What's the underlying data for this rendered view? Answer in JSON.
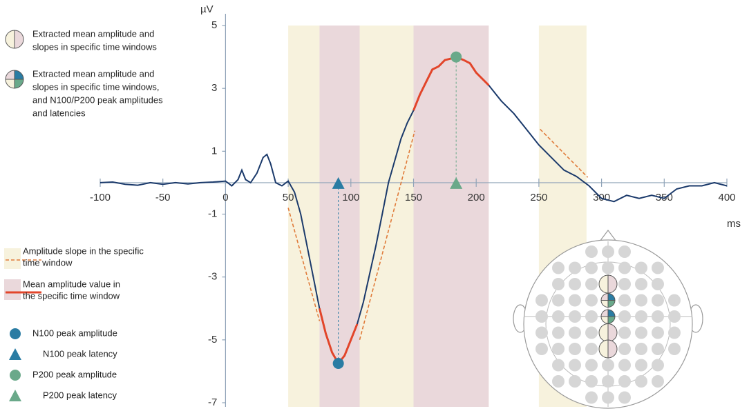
{
  "chart_data": {
    "type": "line",
    "xlabel": "ms",
    "ylabel": "µV",
    "x": [
      -100,
      -90,
      -80,
      -70,
      -60,
      -50,
      -40,
      -30,
      -20,
      -10,
      0,
      5,
      10,
      13,
      16,
      20,
      25,
      30,
      33,
      36,
      40,
      45,
      50,
      55,
      60,
      65,
      70,
      75,
      80,
      85,
      90,
      95,
      100,
      105,
      110,
      115,
      120,
      125,
      130,
      135,
      140,
      145,
      150,
      155,
      160,
      165,
      170,
      175,
      180,
      184,
      190,
      195,
      200,
      210,
      220,
      230,
      240,
      250,
      260,
      270,
      280,
      290,
      300,
      310,
      320,
      330,
      340,
      350,
      360,
      370,
      380,
      390,
      400
    ],
    "values": [
      0,
      0.02,
      -0.05,
      -0.08,
      0,
      -0.05,
      0,
      -0.04,
      0,
      0.02,
      0.05,
      -0.1,
      0.1,
      0.4,
      0.1,
      0,
      0.3,
      0.8,
      0.9,
      0.6,
      0,
      -0.1,
      0.05,
      -0.3,
      -1,
      -2,
      -3,
      -4,
      -4.8,
      -5.4,
      -5.75,
      -5.5,
      -5,
      -4.5,
      -3.8,
      -2.9,
      -2,
      -1,
      0,
      0.7,
      1.4,
      1.9,
      2.3,
      2.8,
      3.2,
      3.6,
      3.7,
      3.9,
      3.95,
      4,
      3.9,
      3.8,
      3.5,
      3.1,
      2.6,
      2.2,
      1.7,
      1.2,
      0.8,
      0.4,
      0.2,
      -0.1,
      -0.5,
      -0.6,
      -0.4,
      -0.5,
      -0.4,
      -0.5,
      -0.2,
      -0.1,
      -0.1,
      0,
      -0.1
    ],
    "color": "#1b3a6b",
    "highlight_color": "#e2452a",
    "slope_color": "#e07b3a",
    "xlim": [
      -100,
      400
    ],
    "xticks": [
      -100,
      -50,
      0,
      50,
      100,
      150,
      200,
      250,
      300,
      350,
      400
    ],
    "ylim": [
      -7,
      5
    ],
    "yticks": [
      5,
      3,
      1,
      -1,
      -3,
      -5,
      -7
    ],
    "windows": [
      {
        "range": [
          50,
          75
        ],
        "color": "#f7f2dd",
        "mean": false
      },
      {
        "range": [
          75,
          107
        ],
        "color": "#ead8db",
        "mean": true
      },
      {
        "range": [
          107,
          150
        ],
        "color": "#f7f2dd",
        "mean": false
      },
      {
        "range": [
          150,
          210
        ],
        "color": "#ead8db",
        "mean": true
      },
      {
        "range": [
          250,
          288
        ],
        "color": "#f7f2dd",
        "mean": false
      }
    ],
    "slopes": [
      {
        "x": [
          50,
          75
        ],
        "y": [
          -0.8,
          -4.4
        ]
      },
      {
        "x": [
          107,
          151
        ],
        "y": [
          -5,
          1.65
        ]
      },
      {
        "x": [
          251,
          289
        ],
        "y": [
          1.7,
          0.17
        ]
      }
    ],
    "peaks": [
      {
        "x": 90,
        "y": -5.75,
        "color": "#2a7ca3"
      },
      {
        "x": 184,
        "y": 4,
        "color": "#6aa98a"
      }
    ],
    "legend": [
      {
        "lines": [
          "Extracted mean amplitude and",
          "slopes in specific time windows"
        ]
      },
      {
        "lines": [
          "Extracted mean amplitude and",
          "slopes in specific time windows,",
          "and N100/P200 peak amplitudes",
          "and latencies"
        ]
      },
      {
        "lines": [
          "Amplitude slope in the specific",
          "time window"
        ]
      },
      {
        "lines": [
          "Mean amplitude value in",
          "the specific time window"
        ]
      },
      {
        "lines": [
          "N100 peak amplitude"
        ]
      },
      {
        "lines": [
          "N100 peak latency"
        ]
      },
      {
        "lines": [
          "P200 peak amplitude"
        ]
      },
      {
        "lines": [
          "P200 peak latency"
        ]
      }
    ]
  }
}
